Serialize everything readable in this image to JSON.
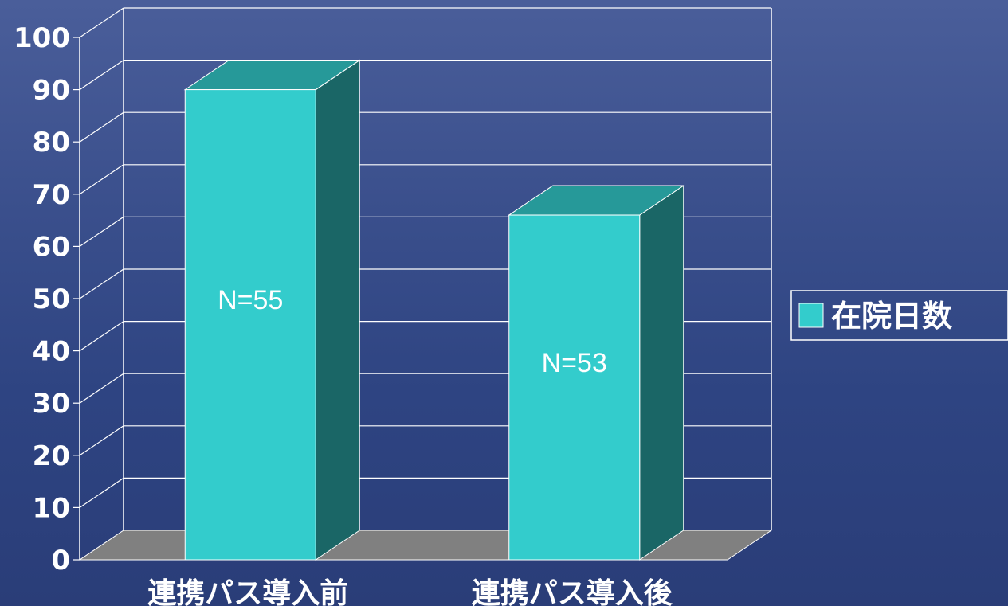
{
  "chart_data": {
    "type": "bar",
    "categories": [
      "連携パス導入前",
      "連携パス導入後"
    ],
    "series": [
      {
        "name": "在院日数",
        "values": [
          90,
          66
        ]
      }
    ],
    "data_labels": [
      "N=55",
      "N=53"
    ],
    "ylim": [
      0,
      100
    ],
    "yticks": [
      0,
      10,
      20,
      30,
      40,
      50,
      60,
      70,
      80,
      90,
      100
    ],
    "grid": true,
    "legend": "right",
    "colors": {
      "bar_front": "#33cccc",
      "bar_side": "#1a6666",
      "bar_top": "#269999",
      "floor": "#808080",
      "grid": "#ffffff"
    }
  }
}
